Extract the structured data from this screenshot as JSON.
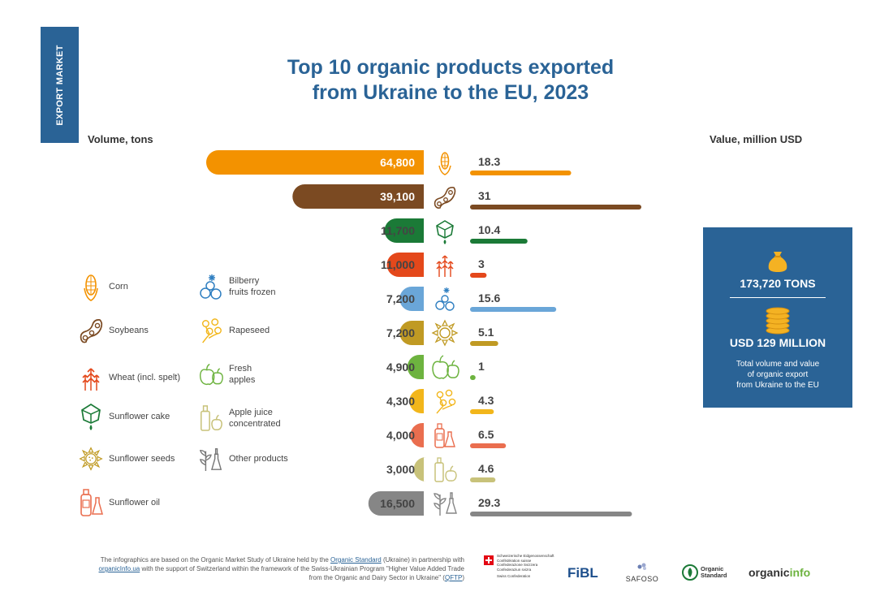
{
  "tab_label": "EXPORT MARKET",
  "title_line1": "Top 10 organic products exported",
  "title_line2": "from Ukraine to the EU, 2023",
  "chart_data": {
    "type": "bar",
    "title": "Top 10 organic products exported from Ukraine to the EU, 2023",
    "left_axis_label": "Volume, tons",
    "right_axis_label": "Value, million USD",
    "series": [
      {
        "name": "Volume, tons",
        "values": [
          64800,
          39100,
          11700,
          11000,
          7200,
          7200,
          4900,
          4300,
          4000,
          3000,
          16500
        ],
        "labels": [
          "64,800",
          "39,100",
          "11,700",
          "11,000",
          "7,200",
          "7,200",
          "4,900",
          "4,300",
          "4,000",
          "3,000",
          "16,500"
        ]
      },
      {
        "name": "Value, million USD",
        "values": [
          18.3,
          31,
          10.4,
          3,
          15.6,
          5.1,
          1,
          4.3,
          6.5,
          4.6,
          29.3
        ],
        "labels": [
          "18.3",
          "31",
          "10.4",
          "3",
          "15.6",
          "5.1",
          "1",
          "4.3",
          "6.5",
          "4.6",
          "29.3"
        ]
      }
    ],
    "rows": [
      {
        "icon": "corn-icon",
        "color": "#f39200"
      },
      {
        "icon": "soybeans-icon",
        "color": "#7b4a22"
      },
      {
        "icon": "sunflower-cake-icon",
        "color": "#1b7a37"
      },
      {
        "icon": "wheat-icon",
        "color": "#e4481b"
      },
      {
        "icon": "bilberry-icon",
        "color": "#6aa6d8"
      },
      {
        "icon": "sunflower-seeds-icon",
        "color": "#c09a23"
      },
      {
        "icon": "fresh-apples-icon",
        "color": "#6db33f"
      },
      {
        "icon": "rapeseed-icon",
        "color": "#f2b61b"
      },
      {
        "icon": "sunflower-oil-icon",
        "color": "#ea6e4f"
      },
      {
        "icon": "apple-juice-icon",
        "color": "#c8c27a"
      },
      {
        "icon": "other-products-icon",
        "color": "#868686"
      }
    ]
  },
  "legend": {
    "corn": "Corn",
    "soybeans": "Soybeans",
    "wheat": "Wheat (incl. spelt)",
    "sunflower_cake": "Sunflower cake",
    "sunflower_seeds": "Sunflower seeds",
    "sunflower_oil": "Sunflower oil",
    "bilberry_1": "Bilberry",
    "bilberry_2": "fruits frozen",
    "rapeseed": "Rapeseed",
    "apples_1": "Fresh",
    "apples_2": "apples",
    "juice_1": "Apple juice",
    "juice_2": "concentrated",
    "other": "Other products"
  },
  "summary": {
    "tons": "173,720 TONS",
    "usd": "USD 129 MILLION",
    "note_1": "Total volume and value",
    "note_2": "of organic export",
    "note_3": "from Ukraine to the EU"
  },
  "footer": {
    "p1": "The infographics are based on the Organic Market Study of Ukraine held by the ",
    "link1": "Organic Standard",
    "p2": " (Ukraine) in partnership with",
    "link2": "organicInfo.ua",
    "p3": " with the support of Switzerland within the framework of the Swiss-Ukrainian Program \"Higher Value Added Trade",
    "p4": "from the Organic and Dairy Sector in Ukraine\" (",
    "link3": "QFTP",
    "p5": ")"
  },
  "logos": {
    "swiss_1": "Schweizerische Eidgenossenschaft",
    "swiss_2": "Confédération suisse",
    "swiss_3": "Confederazione Svizzera",
    "swiss_4": "Confederaziun svizra",
    "swiss_5": "Swiss Confederation",
    "fibl": "FiBL",
    "safoso": "SAFOSO",
    "os_1": "Organic",
    "os_2": "Standard",
    "oi_1": "organic",
    "oi_2": "info"
  }
}
